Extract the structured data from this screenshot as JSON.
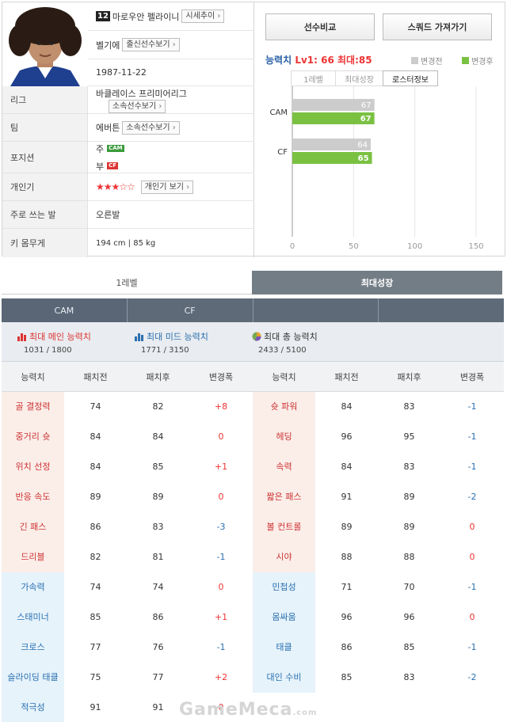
{
  "player": {
    "number": "12",
    "name": "마로우안 펠라이니",
    "btn_trend": "시세추이",
    "country": "벨기에",
    "btn_country": "출신선수보기",
    "birth": "1987-11-22",
    "league": "바클레이스 프리미어리그",
    "btn_league": "소속선수보기",
    "team": "에버튼",
    "btn_team": "소속선수보기",
    "pos_main_label": "주",
    "pos_main": "CAM",
    "pos_sub_label": "부",
    "pos_sub": "CF",
    "popularity_stars": "★★★☆☆",
    "btn_popularity": "개인기 보기",
    "foot": "오른발",
    "body": "194 cm | 85 kg"
  },
  "labels": {
    "league": "리그",
    "team": "팀",
    "position": "포지션",
    "skill": "개인기",
    "foot": "주로 쓰는 발",
    "body": "키 몸무게"
  },
  "buttons": {
    "compare": "선수비교",
    "squad": "스쿼드 가져가기"
  },
  "ability": {
    "label": "능력치 ",
    "value": "Lv1: 66 최대:85",
    "legend_before": "변경전",
    "legend_after": "변경후",
    "tabs": [
      "1레벨",
      "최대성장",
      "로스터정보"
    ],
    "active_tab": 2
  },
  "chart_data": {
    "type": "bar",
    "categories": [
      "CAM",
      "CF"
    ],
    "series": [
      {
        "name": "변경전",
        "values": [
          67,
          64
        ],
        "color": "#cccccc"
      },
      {
        "name": "변경후",
        "values": [
          67,
          65
        ],
        "color": "#7ac142"
      }
    ],
    "xlim": [
      0,
      150
    ],
    "xticks": [
      "0",
      "50",
      "100",
      "150"
    ]
  },
  "lower_tabs": [
    "1레벨",
    "최대성장"
  ],
  "lower_active": 1,
  "pos_tabs": [
    "CAM",
    "CF",
    "",
    ""
  ],
  "summary": [
    {
      "title": "최대 메인 능력치",
      "value": "1031 / 1800",
      "color": "#d33"
    },
    {
      "title": "최대 미드 능력치",
      "value": "1771 / 3150",
      "color": "#2a6fb0"
    },
    {
      "title": "최대 총 능력치",
      "value": "2433 / 5100",
      "color": "#7a5"
    }
  ],
  "table": {
    "headers": [
      "능력치",
      "패치전",
      "패치후",
      "변경폭",
      "능력치",
      "패치전",
      "패치후",
      "변경폭"
    ],
    "rows": [
      {
        "l": [
          "골 결정력",
          "74",
          "82",
          "+8"
        ],
        "r": [
          "슛 파워",
          "84",
          "83",
          "-1"
        ],
        "bg": "r"
      },
      {
        "l": [
          "중거리 슛",
          "84",
          "84",
          "0"
        ],
        "r": [
          "헤딩",
          "96",
          "95",
          "-1"
        ],
        "bg": "r"
      },
      {
        "l": [
          "위치 선정",
          "84",
          "85",
          "+1"
        ],
        "r": [
          "속력",
          "84",
          "83",
          "-1"
        ],
        "bg": "r"
      },
      {
        "l": [
          "반응 속도",
          "89",
          "89",
          "0"
        ],
        "r": [
          "짧은 패스",
          "91",
          "89",
          "-2"
        ],
        "bg": "r"
      },
      {
        "l": [
          "긴 패스",
          "86",
          "83",
          "-3"
        ],
        "r": [
          "볼 컨트롤",
          "89",
          "89",
          "0"
        ],
        "bg": "r"
      },
      {
        "l": [
          "드리블",
          "82",
          "81",
          "-1"
        ],
        "r": [
          "시야",
          "88",
          "88",
          "0"
        ],
        "bg": "r"
      },
      {
        "l": [
          "가속력",
          "74",
          "74",
          "0"
        ],
        "r": [
          "민첩성",
          "71",
          "70",
          "-1"
        ],
        "bg": "b"
      },
      {
        "l": [
          "스태미너",
          "85",
          "86",
          "+1"
        ],
        "r": [
          "몸싸움",
          "96",
          "96",
          "0"
        ],
        "bg": "b"
      },
      {
        "l": [
          "크로스",
          "77",
          "76",
          "-1"
        ],
        "r": [
          "태클",
          "86",
          "85",
          "-1"
        ],
        "bg": "b"
      },
      {
        "l": [
          "슬라이딩 태클",
          "75",
          "77",
          "+2"
        ],
        "r": [
          "대인 수비",
          "85",
          "83",
          "-2"
        ],
        "bg": "b"
      },
      {
        "l": [
          "적극성",
          "91",
          "91",
          "0"
        ],
        "r": [
          "",
          "",
          "",
          ""
        ],
        "bg": "b"
      }
    ]
  },
  "watermark": "GameMeca",
  "watermark_suffix": ".com"
}
